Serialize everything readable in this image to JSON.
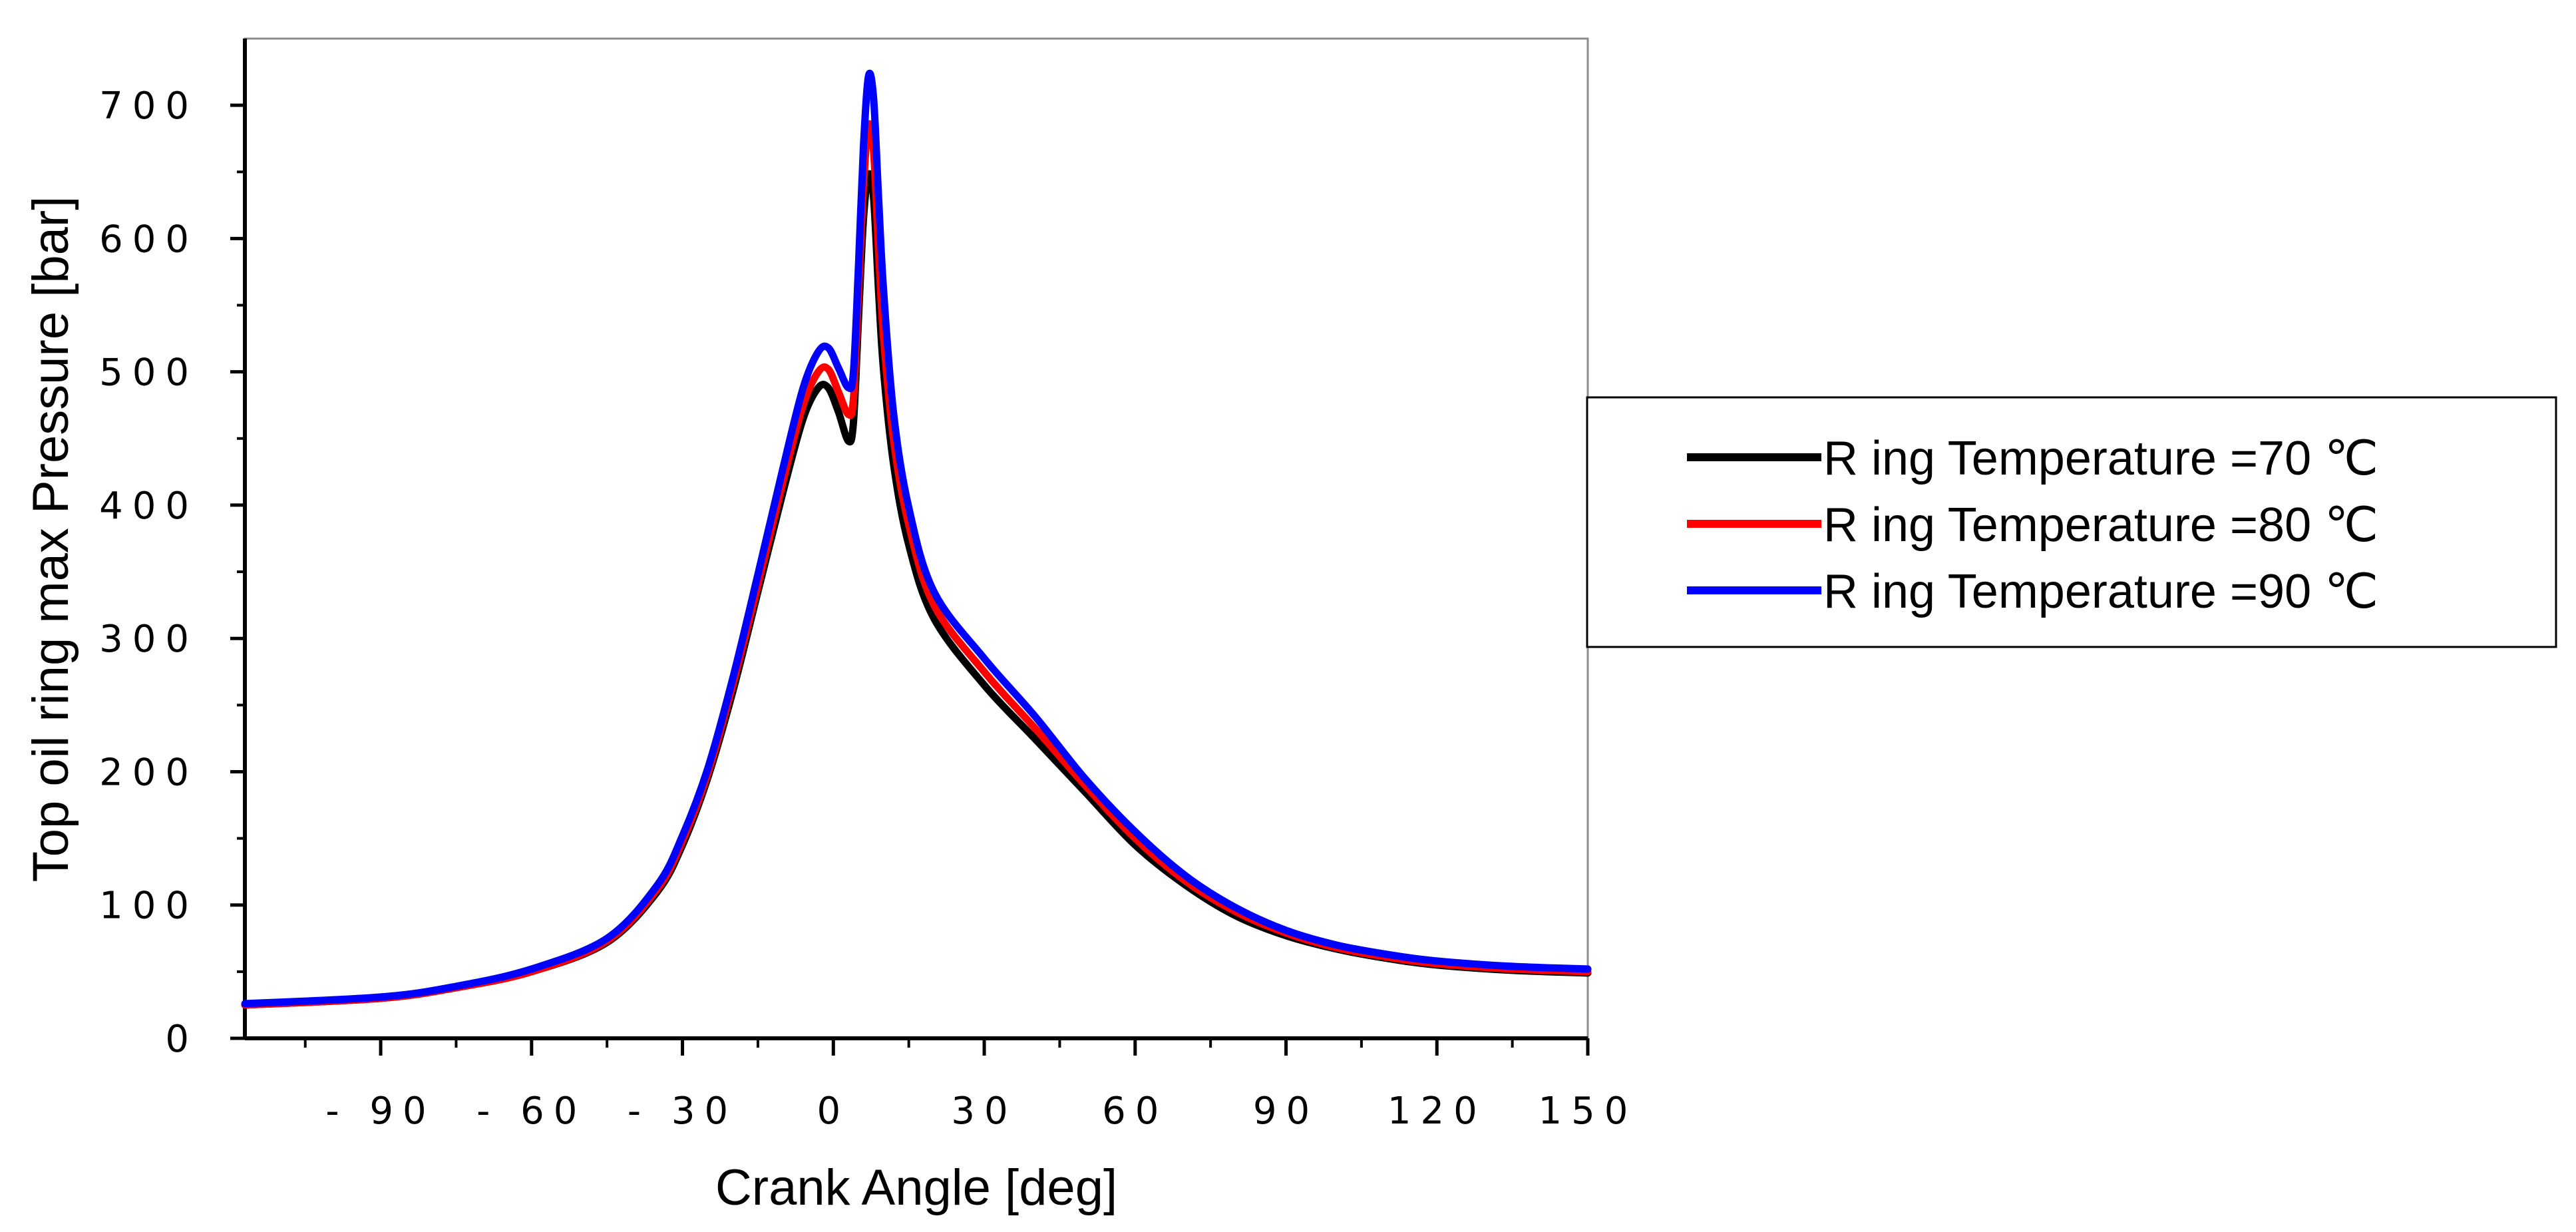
{
  "chart_data": {
    "type": "line",
    "title": "",
    "xlabel": "Crank Angle [deg]",
    "ylabel": "Top oil ring max Pressure [bar]",
    "xlim": [
      -117,
      150
    ],
    "ylim": [
      0,
      750
    ],
    "x_ticks": [
      -90,
      -60,
      -30,
      0,
      30,
      60,
      90,
      120,
      150
    ],
    "x_tick_labels": [
      "- 90",
      "- 60",
      "- 30",
      "0",
      "30",
      "60",
      "90",
      "120",
      "150"
    ],
    "y_ticks": [
      0,
      100,
      200,
      300,
      400,
      500,
      600,
      700
    ],
    "y_tick_labels": [
      "0",
      "100",
      "200",
      "300",
      "400",
      "500",
      "600",
      "700"
    ],
    "legend_position": "right",
    "series": [
      {
        "name": "R ing Temperature =70 ℃",
        "color": "#000000",
        "points": [
          [
            -117,
            25
          ],
          [
            -90,
            30
          ],
          [
            -75,
            38
          ],
          [
            -60,
            50
          ],
          [
            -45,
            72
          ],
          [
            -35,
            110
          ],
          [
            -30,
            145
          ],
          [
            -25,
            195
          ],
          [
            -20,
            260
          ],
          [
            -15,
            335
          ],
          [
            -10,
            410
          ],
          [
            -6,
            465
          ],
          [
            -3,
            488
          ],
          [
            -1,
            488
          ],
          [
            1,
            470
          ],
          [
            3,
            448
          ],
          [
            4,
            462
          ],
          [
            5,
            540
          ],
          [
            6,
            615
          ],
          [
            7,
            648
          ],
          [
            8,
            630
          ],
          [
            9,
            560
          ],
          [
            10,
            500
          ],
          [
            12,
            430
          ],
          [
            15,
            370
          ],
          [
            20,
            315
          ],
          [
            30,
            265
          ],
          [
            40,
            225
          ],
          [
            50,
            185
          ],
          [
            60,
            145
          ],
          [
            70,
            115
          ],
          [
            80,
            92
          ],
          [
            90,
            77
          ],
          [
            100,
            67
          ],
          [
            110,
            60
          ],
          [
            120,
            55
          ],
          [
            135,
            51
          ],
          [
            150,
            49
          ]
        ]
      },
      {
        "name": "R ing Temperature =80 ℃",
        "color": "#ff0000",
        "points": [
          [
            -117,
            25
          ],
          [
            -90,
            30
          ],
          [
            -75,
            38
          ],
          [
            -60,
            50
          ],
          [
            -45,
            73
          ],
          [
            -35,
            112
          ],
          [
            -30,
            148
          ],
          [
            -25,
            198
          ],
          [
            -20,
            265
          ],
          [
            -15,
            340
          ],
          [
            -10,
            418
          ],
          [
            -6,
            475
          ],
          [
            -3,
            500
          ],
          [
            -1,
            502
          ],
          [
            1,
            485
          ],
          [
            3,
            468
          ],
          [
            4,
            480
          ],
          [
            5,
            560
          ],
          [
            6,
            640
          ],
          [
            7,
            685
          ],
          [
            8,
            665
          ],
          [
            9,
            590
          ],
          [
            10,
            525
          ],
          [
            12,
            448
          ],
          [
            15,
            385
          ],
          [
            20,
            325
          ],
          [
            30,
            275
          ],
          [
            40,
            233
          ],
          [
            50,
            190
          ],
          [
            60,
            150
          ],
          [
            70,
            118
          ],
          [
            80,
            95
          ],
          [
            90,
            79
          ],
          [
            100,
            68
          ],
          [
            110,
            61
          ],
          [
            120,
            56
          ],
          [
            135,
            52
          ],
          [
            150,
            50
          ]
        ]
      },
      {
        "name": "R ing Temperature =90 ℃",
        "color": "#0000ff",
        "points": [
          [
            -117,
            26
          ],
          [
            -90,
            31
          ],
          [
            -75,
            39
          ],
          [
            -60,
            52
          ],
          [
            -45,
            75
          ],
          [
            -35,
            115
          ],
          [
            -30,
            152
          ],
          [
            -25,
            202
          ],
          [
            -20,
            270
          ],
          [
            -15,
            348
          ],
          [
            -10,
            428
          ],
          [
            -6,
            488
          ],
          [
            -3,
            515
          ],
          [
            -1,
            518
          ],
          [
            1,
            503
          ],
          [
            3,
            488
          ],
          [
            4,
            500
          ],
          [
            5,
            580
          ],
          [
            6,
            670
          ],
          [
            7,
            722
          ],
          [
            8,
            705
          ],
          [
            9,
            630
          ],
          [
            10,
            560
          ],
          [
            12,
            468
          ],
          [
            15,
            398
          ],
          [
            20,
            335
          ],
          [
            30,
            285
          ],
          [
            40,
            242
          ],
          [
            50,
            195
          ],
          [
            60,
            155
          ],
          [
            70,
            122
          ],
          [
            80,
            98
          ],
          [
            90,
            81
          ],
          [
            100,
            70
          ],
          [
            110,
            63
          ],
          [
            120,
            58
          ],
          [
            135,
            54
          ],
          [
            150,
            52
          ]
        ]
      }
    ]
  }
}
